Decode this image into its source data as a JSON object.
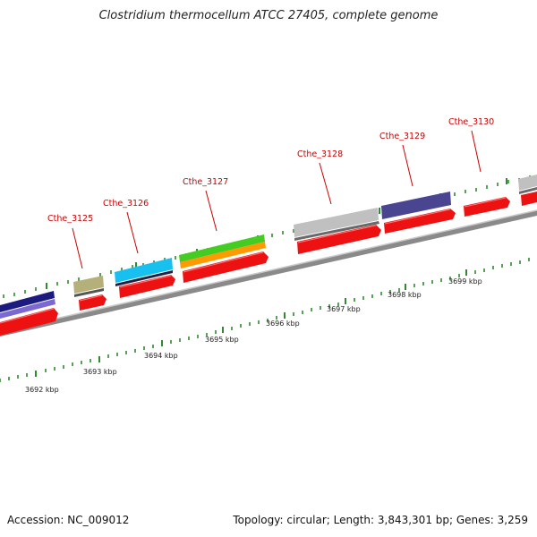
{
  "title": "Clostridium thermocellum ATCC 27405, complete genome",
  "footer": {
    "accession": "Accession: NC_009012",
    "summary": "Topology: circular; Length: 3,843,301 bp; Genes: 3,259"
  },
  "scale_labels": [
    "3692 kbp",
    "3693 kbp",
    "3694 kbp",
    "3695 kbp",
    "3696 kbp",
    "3697 kbp",
    "3698 kbp",
    "3699 kbp"
  ],
  "gene_labels": [
    "Cthe_3125",
    "Cthe_3126",
    "Cthe_3127",
    "Cthe_3128",
    "Cthe_3129",
    "Cthe_3130"
  ],
  "colors": {
    "cds": "#ee1111",
    "backbone": "#8a8a8a",
    "tick": "#2e8b2e",
    "label": "#cc0000",
    "feature_navy": "#1c1c80",
    "feature_lavender": "#7b68d0",
    "feature_khaki": "#b5b07a",
    "feature_cyan": "#18c0f0",
    "feature_green": "#44cc22",
    "feature_orange": "#ff9a00",
    "feature_gray": "#c0c0c0",
    "feature_slate": "#4a4590"
  }
}
